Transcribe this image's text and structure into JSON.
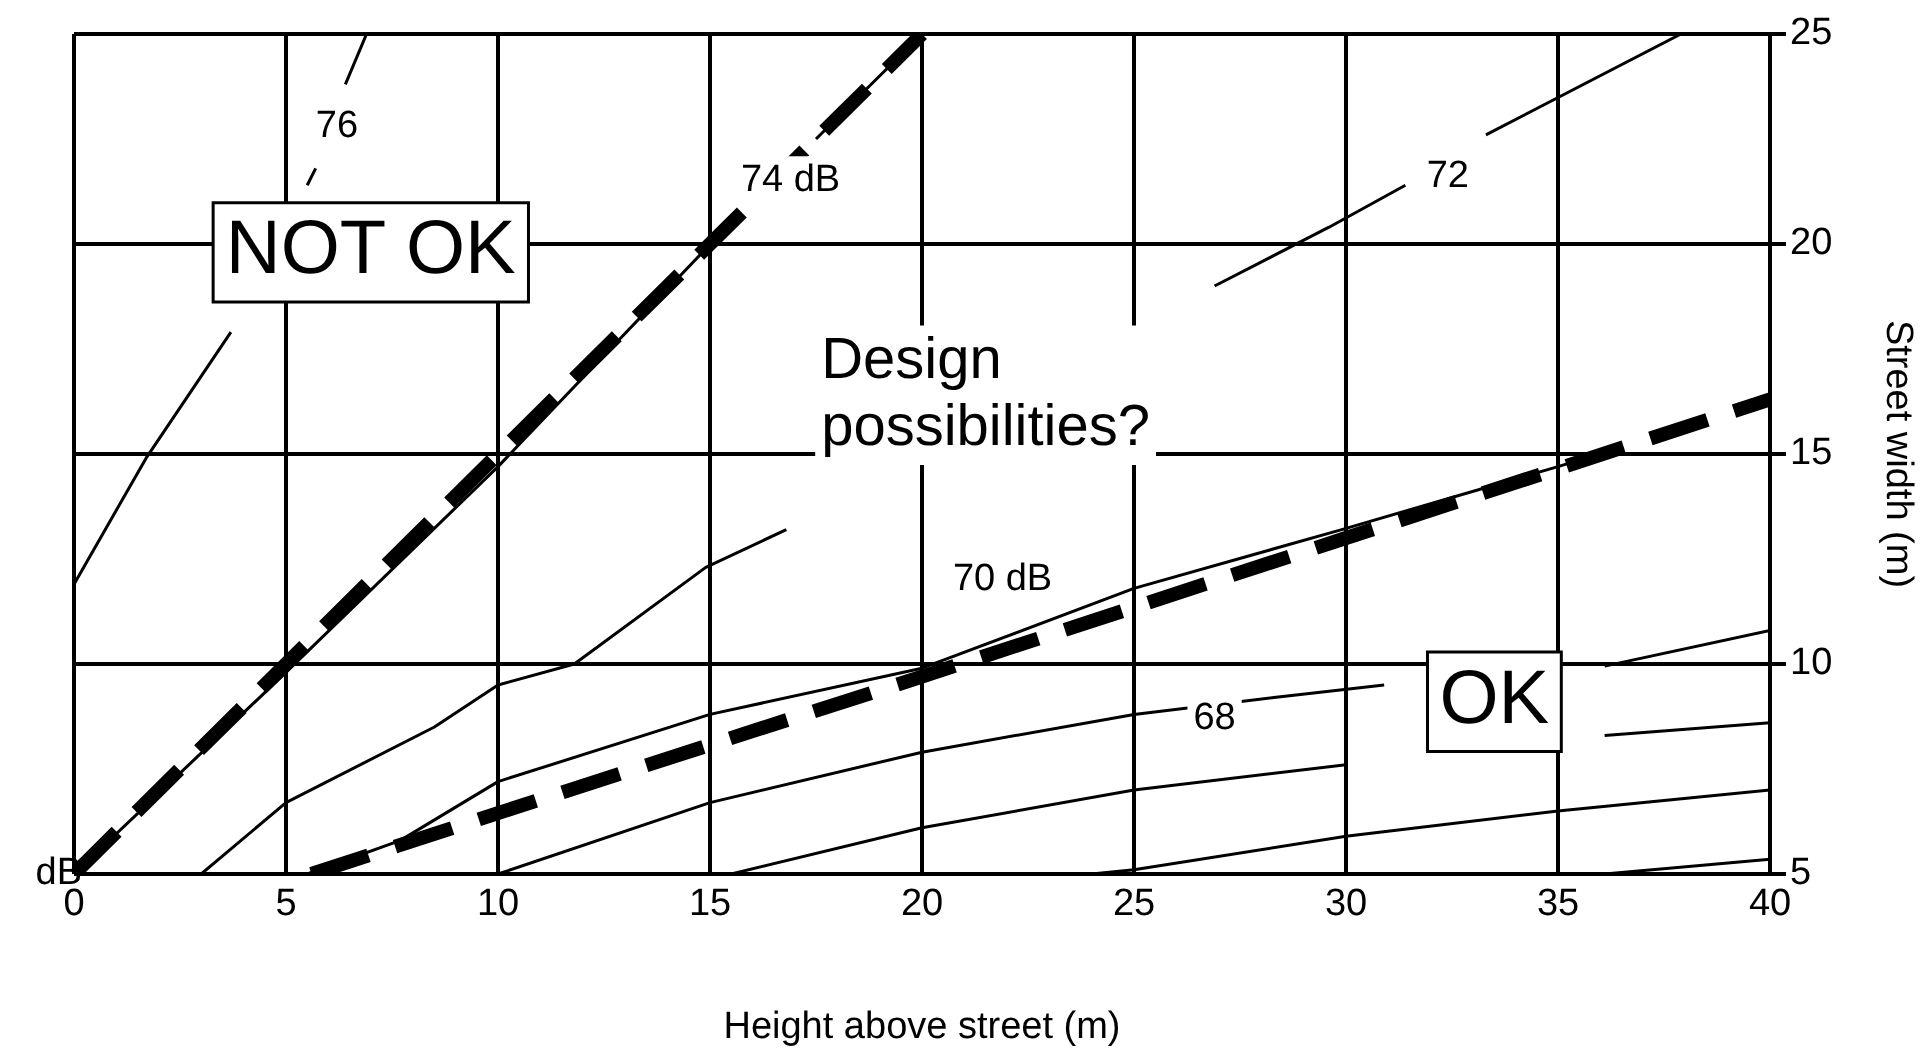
{
  "chart_data": {
    "type": "line",
    "xlabel": "Height above street (m)",
    "ylabel": "Street width (m)",
    "xlim": [
      0,
      40
    ],
    "xticks": [
      0,
      5,
      10,
      15,
      20,
      25,
      30,
      35,
      40
    ],
    "ylim": [
      5,
      25
    ],
    "yticks": [
      5,
      10,
      15,
      20,
      25
    ],
    "grid": true,
    "legend": false,
    "marker": "none",
    "line_style": "solid",
    "series": [
      {
        "color": "#000000",
        "line_style": "dashed",
        "x": [
          0,
          5,
          10,
          15,
          20
        ],
        "values": [
          5,
          10,
          15,
          20,
          25
        ]
      },
      {
        "color": "#000000",
        "line_style": "dashed",
        "x": [
          5.6,
          10,
          20,
          30,
          40
        ],
        "values": [
          5,
          6.45,
          9.7,
          13,
          16.3
        ]
      },
      {
        "color": "#000000",
        "x": [
          0,
          1.7,
          3.7,
          4.5,
          5.5,
          5.7,
          6.0,
          6.4,
          6.9
        ],
        "values": [
          11.9,
          14.9,
          17.9,
          null,
          21.4,
          21.8,
          null,
          23.8,
          25
        ]
      },
      {
        "color": "#000000",
        "x": [
          0,
          5,
          10,
          15.2,
          16,
          17.5,
          20
        ],
        "values": [
          5,
          9.8,
          14.7,
          20.2,
          null,
          22.5,
          25
        ]
      },
      {
        "color": "#000000",
        "x": [
          3,
          5,
          8.5,
          10,
          11.8,
          14.9,
          16.8,
          20,
          26.9,
          29.6,
          31.4,
          32,
          33.3,
          37.9
        ],
        "values": [
          5,
          6.7,
          8.5,
          9.5,
          10,
          12.3,
          13.2,
          null,
          19,
          20.4,
          21.4,
          null,
          22.6,
          25
        ]
      },
      {
        "color": "#000000",
        "x": [
          5.5,
          7.7,
          10,
          15,
          20,
          25,
          29.9,
          35,
          36.3
        ],
        "values": [
          5,
          5.8,
          7.2,
          8.8,
          9.9,
          11.8,
          13.2,
          14.7,
          15.1
        ]
      },
      {
        "color": "#000000",
        "x": [
          10,
          15,
          20,
          25,
          28.3,
          30.9,
          33,
          36.1,
          40
        ],
        "values": [
          5,
          6.7,
          7.9,
          8.8,
          9.2,
          9.5,
          null,
          9.95,
          10.8
        ]
      },
      {
        "color": "#000000",
        "x": [
          15.5,
          20,
          25,
          30,
          33,
          36.1,
          40
        ],
        "values": [
          5,
          6.1,
          7.0,
          7.6,
          null,
          8.3,
          8.6
        ]
      },
      {
        "color": "#000000",
        "x": [
          24,
          25,
          30,
          35,
          40
        ],
        "values": [
          5,
          5.1,
          5.9,
          6.5,
          7.0
        ]
      },
      {
        "color": "#000000",
        "x": [
          36.1,
          40
        ],
        "values": [
          5,
          5.35
        ]
      }
    ],
    "annotations": [
      {
        "text": "76",
        "x": 6.2,
        "y": 22.8
      },
      {
        "text": "74 dB",
        "x": 16.9,
        "y": 21.5
      },
      {
        "text": "72",
        "x": 32.4,
        "y": 21.6
      },
      "70 dB",
      {
        "text": "68",
        "x": 26.9,
        "y": 8.7
      },
      {
        "text": "dB",
        "x": 0,
        "y": 5
      },
      "NOT OK",
      "OK",
      "Design possibilities?"
    ]
  }
}
